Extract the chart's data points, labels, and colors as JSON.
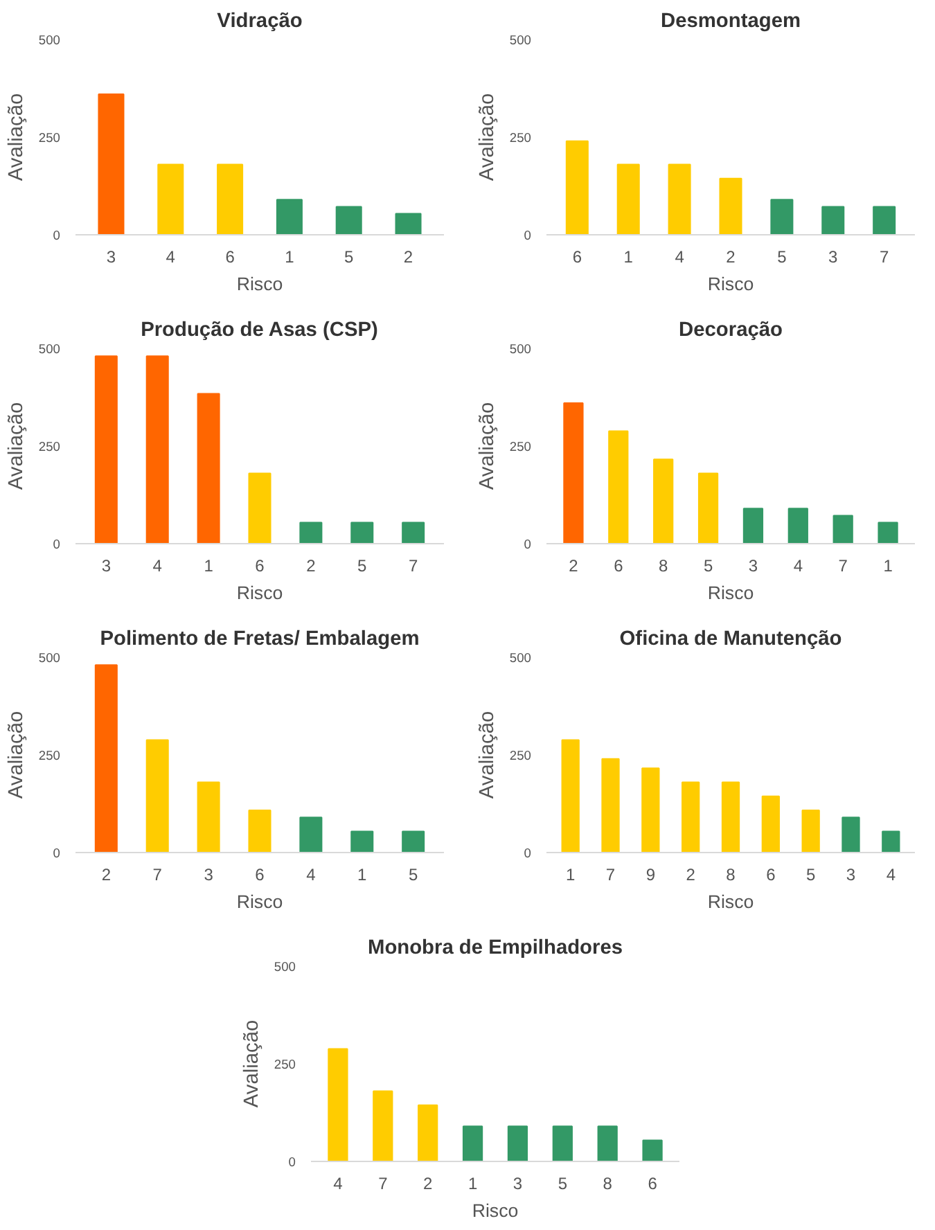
{
  "chart_data": [
    {
      "type": "bar",
      "title": "Vidração",
      "xlabel": "Risco",
      "ylabel": "Avaliação",
      "categories": [
        "3",
        "4",
        "6",
        "1",
        "5",
        "2"
      ],
      "values": [
        360,
        180,
        180,
        90,
        72,
        54
      ],
      "colors": [
        "#ff6600",
        "#ffcc00",
        "#ffcc00",
        "#339966",
        "#339966",
        "#339966"
      ],
      "ylim": [
        0,
        500
      ],
      "yticks": [
        0,
        250,
        500
      ],
      "grid": false
    },
    {
      "type": "bar",
      "title": "Desmontagem",
      "xlabel": "Risco",
      "ylabel": "Avaliação",
      "categories": [
        "6",
        "1",
        "4",
        "2",
        "5",
        "3",
        "7"
      ],
      "values": [
        240,
        180,
        180,
        144,
        90,
        72,
        72
      ],
      "colors": [
        "#ffcc00",
        "#ffcc00",
        "#ffcc00",
        "#ffcc00",
        "#339966",
        "#339966",
        "#339966"
      ],
      "ylim": [
        0,
        500
      ],
      "yticks": [
        0,
        250,
        500
      ],
      "grid": false
    },
    {
      "type": "bar",
      "title": "Produção de Asas (CSP)",
      "xlabel": "Risco",
      "ylabel": "Avaliação",
      "categories": [
        "3",
        "4",
        "1",
        "6",
        "2",
        "5",
        "7"
      ],
      "values": [
        480,
        480,
        384,
        180,
        54,
        54,
        54
      ],
      "colors": [
        "#ff6600",
        "#ff6600",
        "#ff6600",
        "#ffcc00",
        "#339966",
        "#339966",
        "#339966"
      ],
      "ylim": [
        0,
        500
      ],
      "yticks": [
        0,
        250,
        500
      ],
      "grid": false
    },
    {
      "type": "bar",
      "title": "Decoração",
      "xlabel": "Risco",
      "ylabel": "Avaliação",
      "categories": [
        "2",
        "6",
        "8",
        "5",
        "3",
        "4",
        "7",
        "1"
      ],
      "values": [
        360,
        288,
        216,
        180,
        90,
        90,
        72,
        54
      ],
      "colors": [
        "#ff6600",
        "#ffcc00",
        "#ffcc00",
        "#ffcc00",
        "#339966",
        "#339966",
        "#339966",
        "#339966"
      ],
      "ylim": [
        0,
        500
      ],
      "yticks": [
        0,
        250,
        500
      ],
      "grid": false
    },
    {
      "type": "bar",
      "title": "Polimento de Fretas/ Embalagem",
      "xlabel": "Risco",
      "ylabel": "Avaliação",
      "categories": [
        "2",
        "7",
        "3",
        "6",
        "4",
        "1",
        "5"
      ],
      "values": [
        480,
        288,
        180,
        108,
        90,
        54,
        54
      ],
      "colors": [
        "#ff6600",
        "#ffcc00",
        "#ffcc00",
        "#ffcc00",
        "#339966",
        "#339966",
        "#339966"
      ],
      "ylim": [
        0,
        500
      ],
      "yticks": [
        0,
        250,
        500
      ],
      "grid": false
    },
    {
      "type": "bar",
      "title": "Oficina de Manutenção",
      "xlabel": "Risco",
      "ylabel": "Avaliação",
      "categories": [
        "1",
        "7",
        "9",
        "2",
        "8",
        "6",
        "5",
        "3",
        "4"
      ],
      "values": [
        288,
        240,
        216,
        180,
        180,
        144,
        108,
        90,
        54
      ],
      "colors": [
        "#ffcc00",
        "#ffcc00",
        "#ffcc00",
        "#ffcc00",
        "#ffcc00",
        "#ffcc00",
        "#ffcc00",
        "#339966",
        "#339966"
      ],
      "ylim": [
        0,
        500
      ],
      "yticks": [
        0,
        250,
        500
      ],
      "grid": false
    },
    {
      "type": "bar",
      "title": "Monobra de Empilhadores",
      "xlabel": "Risco",
      "ylabel": "Avaliação",
      "categories": [
        "4",
        "7",
        "2",
        "1",
        "3",
        "5",
        "8",
        "6"
      ],
      "values": [
        288,
        180,
        144,
        90,
        90,
        90,
        90,
        54
      ],
      "colors": [
        "#ffcc00",
        "#ffcc00",
        "#ffcc00",
        "#339966",
        "#339966",
        "#339966",
        "#339966",
        "#339966"
      ],
      "ylim": [
        0,
        500
      ],
      "yticks": [
        0,
        250,
        500
      ],
      "grid": false
    }
  ]
}
